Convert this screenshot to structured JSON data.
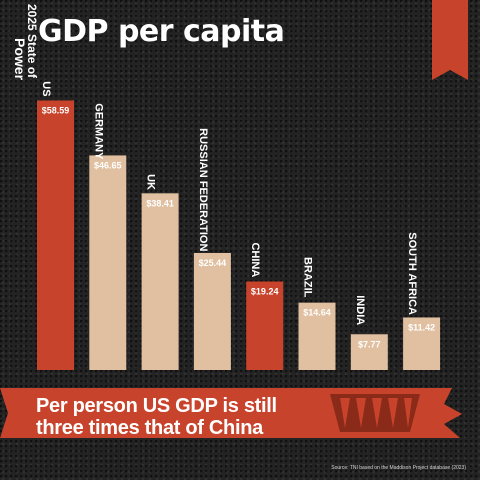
{
  "title": "GDP per capita",
  "badge": {
    "year": "2025",
    "line1": "State of",
    "line2": "Power"
  },
  "subtitle": {
    "line1": "Per person US GDP is still",
    "line2": "three times that of China"
  },
  "source": "Source: TNI based on the Maddison Project database (2023)",
  "colors": {
    "highlight": "#c8432b",
    "base": "#e0c0a0",
    "background": "#232323",
    "text": "#ffffff"
  },
  "chart_data": {
    "type": "bar",
    "categories": [
      "US",
      "GERMANY",
      "UK",
      "RUSSIAN FEDERATION",
      "CHINA",
      "BRAZIL",
      "INDIA",
      "SOUTH AFRICA"
    ],
    "values": [
      58.59,
      46.65,
      38.41,
      25.44,
      19.24,
      14.64,
      7.77,
      11.42
    ],
    "value_labels": [
      "$58.59",
      "$46.65",
      "$38.41",
      "$25.44",
      "$19.24",
      "$14.64",
      "$7.77",
      "$11.42"
    ],
    "highlighted": [
      "US",
      "CHINA"
    ],
    "title": "GDP per capita",
    "xlabel": "",
    "ylabel": "",
    "grid": false,
    "legend": "none"
  }
}
